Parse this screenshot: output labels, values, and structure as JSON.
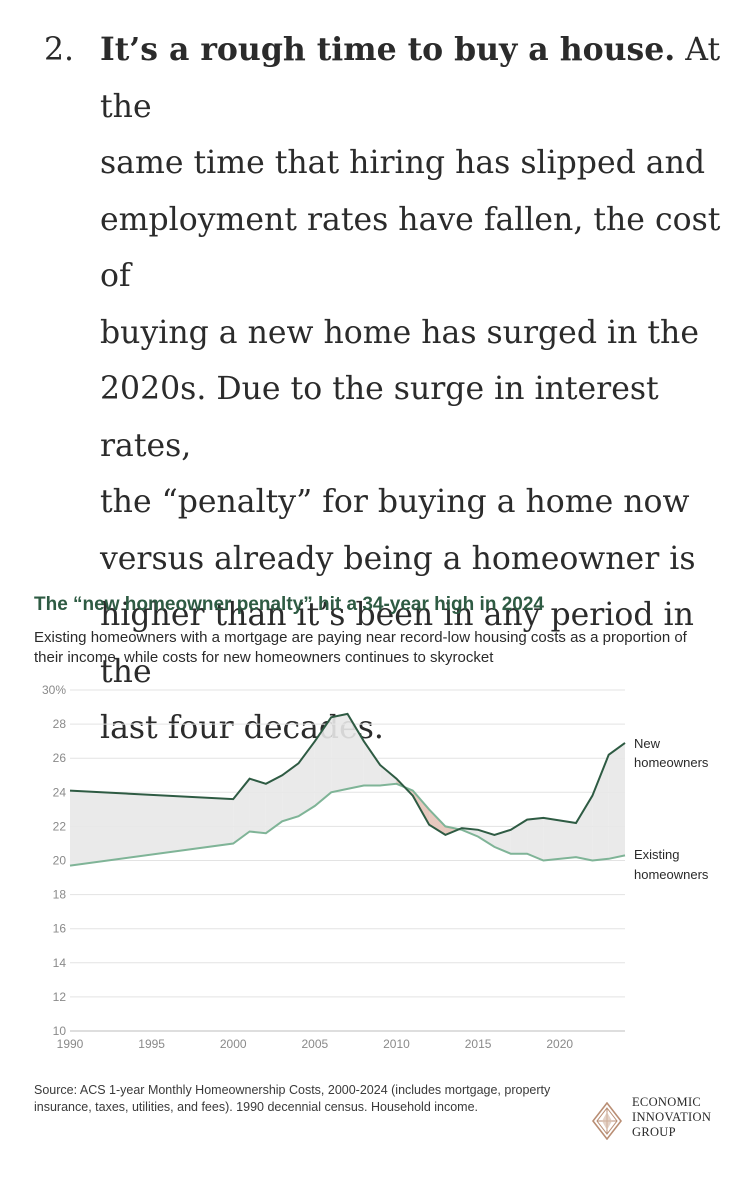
{
  "article": {
    "number": "2.",
    "lead": "It’s a rough time to buy a house.",
    "lines": [
      " At the",
      "same time that hiring has slipped and",
      "employment rates have fallen, the cost of",
      "buying a new home has surged in the",
      "2020s. Due to the surge in interest rates,",
      "the “penalty” for buying a home now",
      "versus already being a homeowner is",
      "higher than it’s been in any period in the",
      "last four decades."
    ]
  },
  "chart": {
    "title": "The “new homeowner penalty” hit a 34-year high in 2024",
    "subtitle": "Existing homeowners with a mortgage are paying near record-low housing costs as a proportion of their income, while costs for new homeowners continues to skyrocket",
    "source": "Source: ACS 1-year Monthly Homeownership Costs, 2000-2024 (includes mortgage, property insurance, taxes, utilities, and fees). 1990 decennial census. Household income."
  },
  "brand": {
    "line1": "ECONOMIC",
    "line2": "INNOVATION",
    "line3": "GROUP"
  },
  "colors": {
    "new_line": "#2e5b43",
    "existing_line": "#7fb497",
    "gap_fill": "#e8e8e8",
    "inversion_fill": "#e6c3b8",
    "title": "#2e5b43"
  },
  "chart_data": {
    "type": "area",
    "title": "The “new homeowner penalty” hit a 34-year high in 2024",
    "xlim": [
      1990,
      2024
    ],
    "ylim": [
      10,
      30
    ],
    "x_ticks": [
      1990,
      1995,
      2000,
      2005,
      2010,
      2015,
      2020
    ],
    "y_ticks": [
      10,
      12,
      14,
      16,
      18,
      20,
      22,
      24,
      26,
      28,
      30
    ],
    "y_tick_labels": [
      "10",
      "12",
      "14",
      "16",
      "18",
      "20",
      "22",
      "24",
      "26",
      "28",
      "30%"
    ],
    "grid": true,
    "legend": "end-of-line labels",
    "series": [
      {
        "name": "New homeowners",
        "x": [
          1990,
          2000,
          2001,
          2002,
          2003,
          2004,
          2005,
          2006,
          2007,
          2008,
          2009,
          2010,
          2011,
          2012,
          2013,
          2014,
          2015,
          2016,
          2017,
          2018,
          2019,
          2021,
          2022,
          2023,
          2024
        ],
        "y": [
          24.1,
          23.6,
          24.8,
          24.5,
          25.0,
          25.7,
          27.0,
          28.4,
          28.6,
          27.0,
          25.6,
          24.8,
          23.8,
          22.1,
          21.5,
          21.9,
          21.8,
          21.5,
          21.8,
          22.4,
          22.5,
          22.2,
          23.8,
          26.2,
          26.9
        ]
      },
      {
        "name": "Existing homeowners",
        "x": [
          1990,
          2000,
          2001,
          2002,
          2003,
          2004,
          2005,
          2006,
          2007,
          2008,
          2009,
          2010,
          2011,
          2012,
          2013,
          2014,
          2015,
          2016,
          2017,
          2018,
          2019,
          2021,
          2022,
          2023,
          2024
        ],
        "y": [
          19.7,
          21.0,
          21.7,
          21.6,
          22.3,
          22.6,
          23.2,
          24.0,
          24.2,
          24.4,
          24.4,
          24.5,
          24.1,
          23.0,
          22.0,
          21.8,
          21.4,
          20.8,
          20.4,
          20.4,
          20.0,
          20.2,
          20.0,
          20.1,
          20.3
        ]
      }
    ]
  }
}
